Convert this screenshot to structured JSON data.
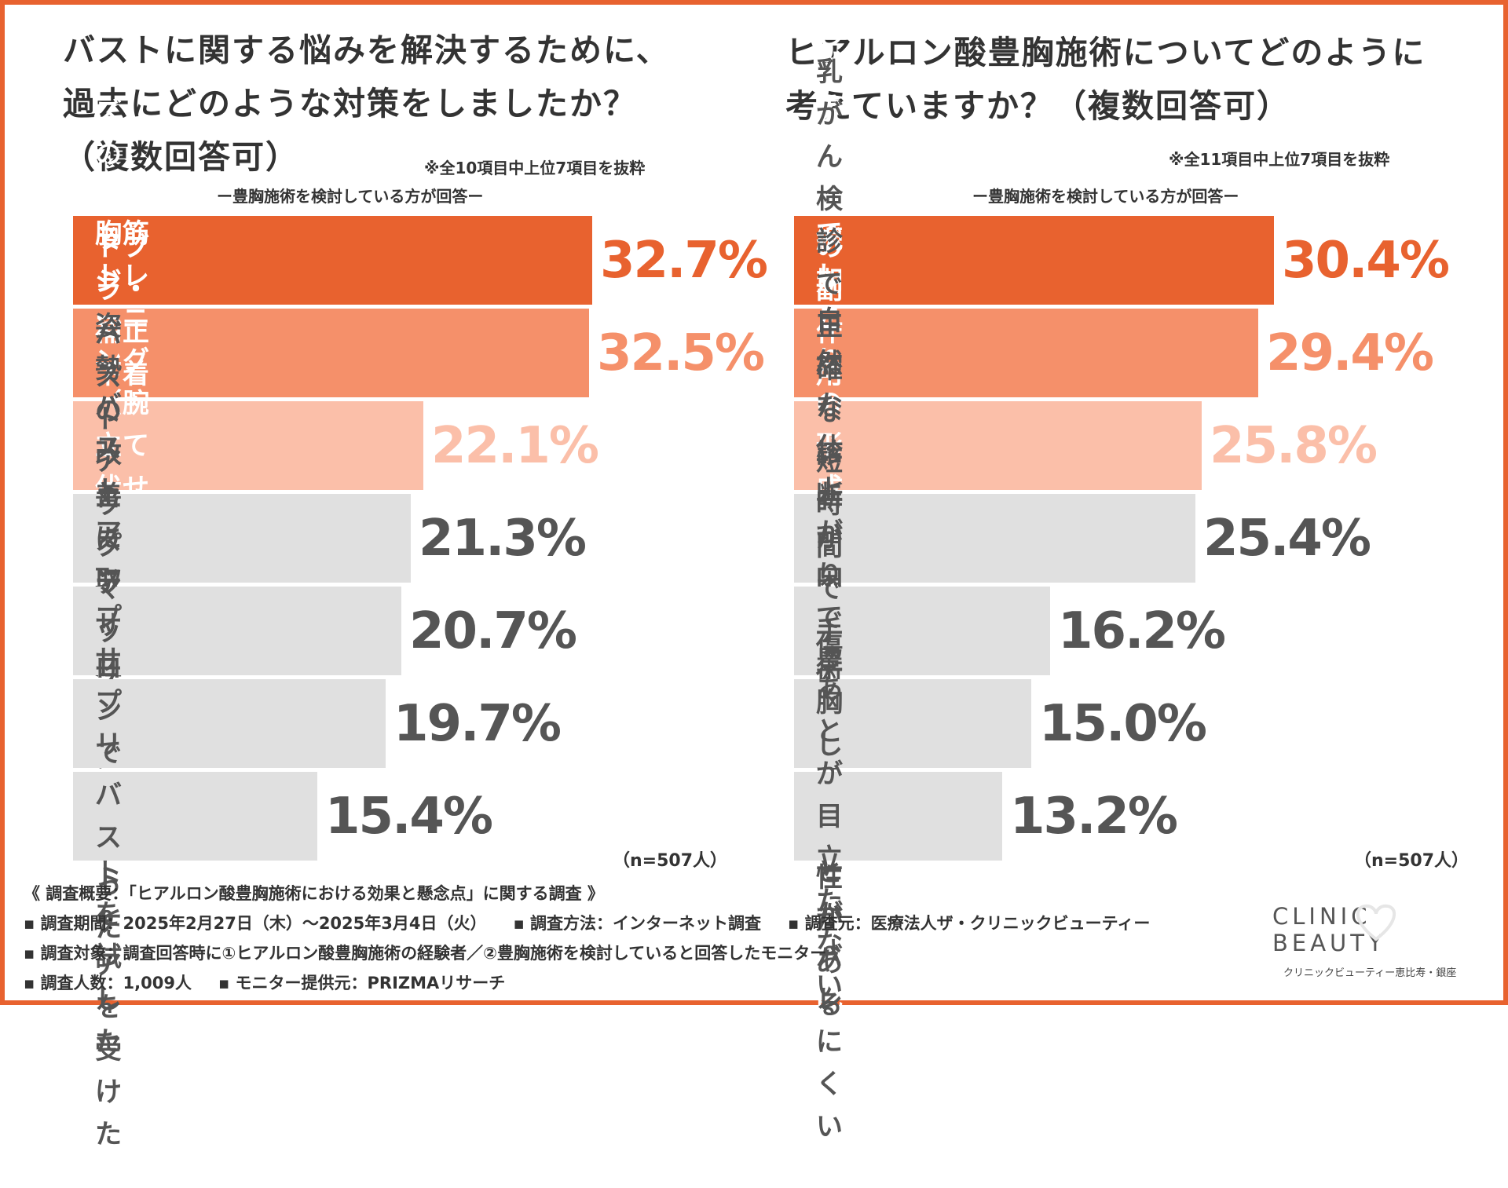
{
  "colors": {
    "border": "#e8622f",
    "rank1": "#e8622f",
    "rank2": "#f5906a",
    "rank3": "#fbbfa9",
    "other": "#e0e0e0",
    "otherText": "#555555"
  },
  "left": {
    "title_lines": [
      "バストに関する悩みを解決するために、",
      "過去にどのような対策をしましたか？",
      "（複数回答可）"
    ],
    "note": "※全10項目中上位7項目を抜粋",
    "respondents": "ー豊胸施術を検討している方が回答ー",
    "n": "（n=507人）"
  },
  "right": {
    "title_lines": [
      "ヒアルロン酸豊胸施術についてどのように",
      "考えていますか？（複数回答可）"
    ],
    "note": "※全11項目中上位7項目を抜粋",
    "respondents": "ー豊胸施術を検討している方が回答ー",
    "n": "（n=507人）"
  },
  "chart_data": [
    {
      "type": "bar",
      "orientation": "horizontal",
      "categories": [
        "適切なサイズのブラジャーを\n選び直した",
        "ナイトブラ・補正下着を着用した",
        "胸筋トレーニング（腕立て伏せ\nなど）をした",
        "姿勢の改善に取り組んだ",
        "バストアップマッサージを行った",
        "バストアップサプリメントを\n試した",
        "エステサロンでバストケアを\n受けた"
      ],
      "values": [
        32.7,
        32.5,
        22.1,
        21.3,
        20.7,
        19.7,
        15.4
      ],
      "value_labels": [
        "32.7%",
        "32.5%",
        "22.1%",
        "21.3%",
        "20.7%",
        "19.7%",
        "15.4%"
      ],
      "unit": "%"
    },
    {
      "type": "bar",
      "orientation": "horizontal",
      "categories": [
        "効果の持続期間が短い",
        "しこりなどの副作用のリスクがある",
        "繰り返し手術を受けることでしこりの\n形成などのリスクが高まる可能性がある",
        "乳がん検診で正確な診断が\n困難になる可能性がある",
        "短時間で手術が可能",
        "自然な仕上がりで豊胸\nしたことがバレにくい",
        "傷あとが目立たない"
      ],
      "values": [
        30.4,
        29.4,
        25.8,
        25.4,
        16.2,
        15.0,
        13.2
      ],
      "value_labels": [
        "30.4%",
        "29.4%",
        "25.8%",
        "25.4%",
        "16.2%",
        "15.0%",
        "13.2%"
      ],
      "unit": "%"
    }
  ],
  "footer": {
    "heading": "《 調査概要：「ヒアルロン酸豊胸施術における効果と懸念点」に関する調査 》",
    "period": "▪ 調査期間：2025年2月27日（木）〜2025年3月4日（火）",
    "method": "▪ 調査方法：インターネット調査",
    "source": "▪ 調査元：医療法人ザ・クリニックビューティー",
    "target": "▪ 調査対象：調査回答時に①ヒアルロン酸豊胸施術の経験者／②豊胸施術を検討していると回答したモニター",
    "count": "▪ 調査人数：1,009人",
    "provider": "▪ モニター提供元：PRIZMAリサーチ"
  },
  "logo": {
    "name": "CLINIC BEAUTY",
    "sub": "クリニックビューティー恵比寿・銀座"
  }
}
